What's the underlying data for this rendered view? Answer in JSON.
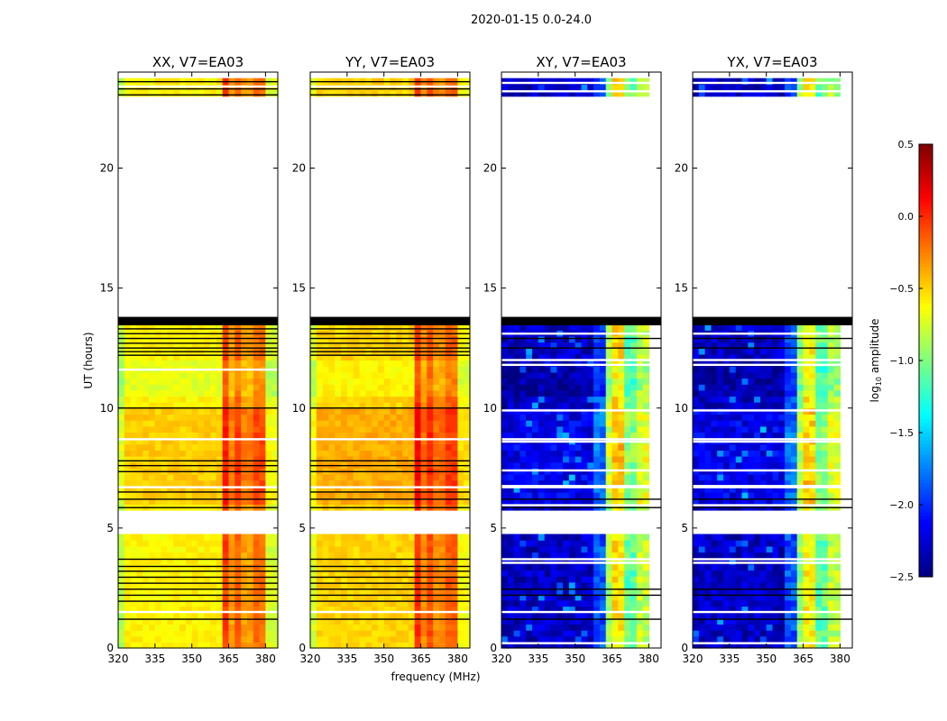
{
  "chart_data": {
    "type": "heatmap",
    "suptitle": "2020-01-15 0.0-24.0",
    "xlabel": "frequency (MHz)",
    "ylabel": "UT (hours)",
    "xlim": [
      320,
      385
    ],
    "ylim": [
      0,
      24
    ],
    "xticks": [
      "320",
      "335",
      "350",
      "365",
      "380"
    ],
    "yticks": [
      "0",
      "5",
      "10",
      "15",
      "20"
    ],
    "colorbar": {
      "label": "log10 amplitude",
      "vmin": -2.5,
      "vmax": 0.5,
      "ticks": [
        "0.5",
        "0.0",
        "−0.5",
        "−1.0",
        "−1.5",
        "−2.0",
        "−2.5"
      ],
      "colormap": "jet"
    },
    "flagged_hours": [
      [
        4.65,
        5.7
      ],
      [
        13.8,
        23.0
      ],
      [
        23.75,
        24
      ]
    ],
    "masked_band_hours": [
      [
        13.45,
        13.8
      ]
    ],
    "panels": [
      {
        "title": "XX, V7=EA03",
        "kind": "parallel",
        "profile": [
          [
            320,
            323,
            -0.85
          ],
          [
            323,
            362,
            -0.6
          ],
          [
            362,
            366,
            -0.05
          ],
          [
            366,
            368,
            -0.35
          ],
          [
            368,
            371,
            -0.15
          ],
          [
            371,
            376,
            -0.35
          ],
          [
            376,
            380,
            -0.2
          ],
          [
            380,
            385,
            -0.75
          ]
        ],
        "black_lines": [
          23.6,
          23.3,
          23.05,
          13.3,
          13.1,
          12.9,
          12.7,
          12.5,
          12.35,
          12.2,
          10.0,
          7.8,
          7.6,
          7.35,
          6.5,
          6.2,
          5.85,
          3.7,
          3.4,
          3.2,
          2.95,
          2.7,
          2.45,
          2.2,
          1.95,
          1.2
        ],
        "white_lines": [
          23.4,
          11.6,
          8.7,
          6.7,
          1.5
        ]
      },
      {
        "title": "YY, V7=EA03",
        "kind": "parallel",
        "profile": [
          [
            320,
            323,
            -0.75
          ],
          [
            323,
            362,
            -0.5
          ],
          [
            362,
            366,
            0.0
          ],
          [
            366,
            368,
            -0.3
          ],
          [
            368,
            371,
            -0.1
          ],
          [
            371,
            376,
            -0.3
          ],
          [
            376,
            380,
            -0.15
          ],
          [
            380,
            385,
            -0.65
          ]
        ],
        "black_lines": [
          23.6,
          23.3,
          23.05,
          13.3,
          13.1,
          12.9,
          12.7,
          12.5,
          12.35,
          12.2,
          10.0,
          7.8,
          7.6,
          7.35,
          6.5,
          6.2,
          5.85,
          3.7,
          3.4,
          3.2,
          2.95,
          2.7,
          2.45,
          2.2,
          1.95,
          1.2
        ],
        "white_lines": [
          23.4,
          8.7,
          6.7,
          1.5
        ]
      },
      {
        "title": "XY, V7=EA03",
        "kind": "cross",
        "profile": [
          [
            320,
            358,
            -2.3
          ],
          [
            358,
            362,
            -1.9
          ],
          [
            362,
            365,
            -0.9
          ],
          [
            365,
            366,
            -1.6
          ],
          [
            366,
            369,
            -0.55
          ],
          [
            369,
            370,
            -1.9
          ],
          [
            370,
            374,
            -1.1
          ],
          [
            374,
            375,
            -2.0
          ],
          [
            375,
            379,
            -0.8
          ]
        ],
        "black_lines": [
          12.9,
          12.5,
          6.2,
          5.85,
          2.45,
          2.2,
          1.2
        ],
        "white_lines": [
          23.55,
          23.2,
          13.1,
          12.0,
          11.8,
          9.9,
          8.7,
          8.6,
          7.4,
          6.75,
          6.7,
          5.95,
          3.7,
          3.55,
          1.5,
          0.2
        ]
      },
      {
        "title": "YX, V7=EA03",
        "kind": "cross",
        "profile": [
          [
            320,
            358,
            -2.3
          ],
          [
            358,
            362,
            -1.9
          ],
          [
            362,
            365,
            -0.95
          ],
          [
            365,
            366,
            -1.6
          ],
          [
            366,
            369,
            -0.6
          ],
          [
            369,
            370,
            -1.9
          ],
          [
            370,
            374,
            -1.1
          ],
          [
            374,
            375,
            -2.0
          ],
          [
            375,
            379,
            -0.85
          ]
        ],
        "black_lines": [
          12.9,
          12.5,
          6.2,
          5.85,
          2.45,
          2.2,
          1.2
        ],
        "white_lines": [
          23.55,
          23.2,
          13.1,
          12.0,
          11.8,
          9.9,
          8.7,
          8.6,
          7.4,
          6.75,
          6.7,
          5.95,
          3.7,
          3.55,
          1.5,
          0.2
        ]
      }
    ]
  }
}
